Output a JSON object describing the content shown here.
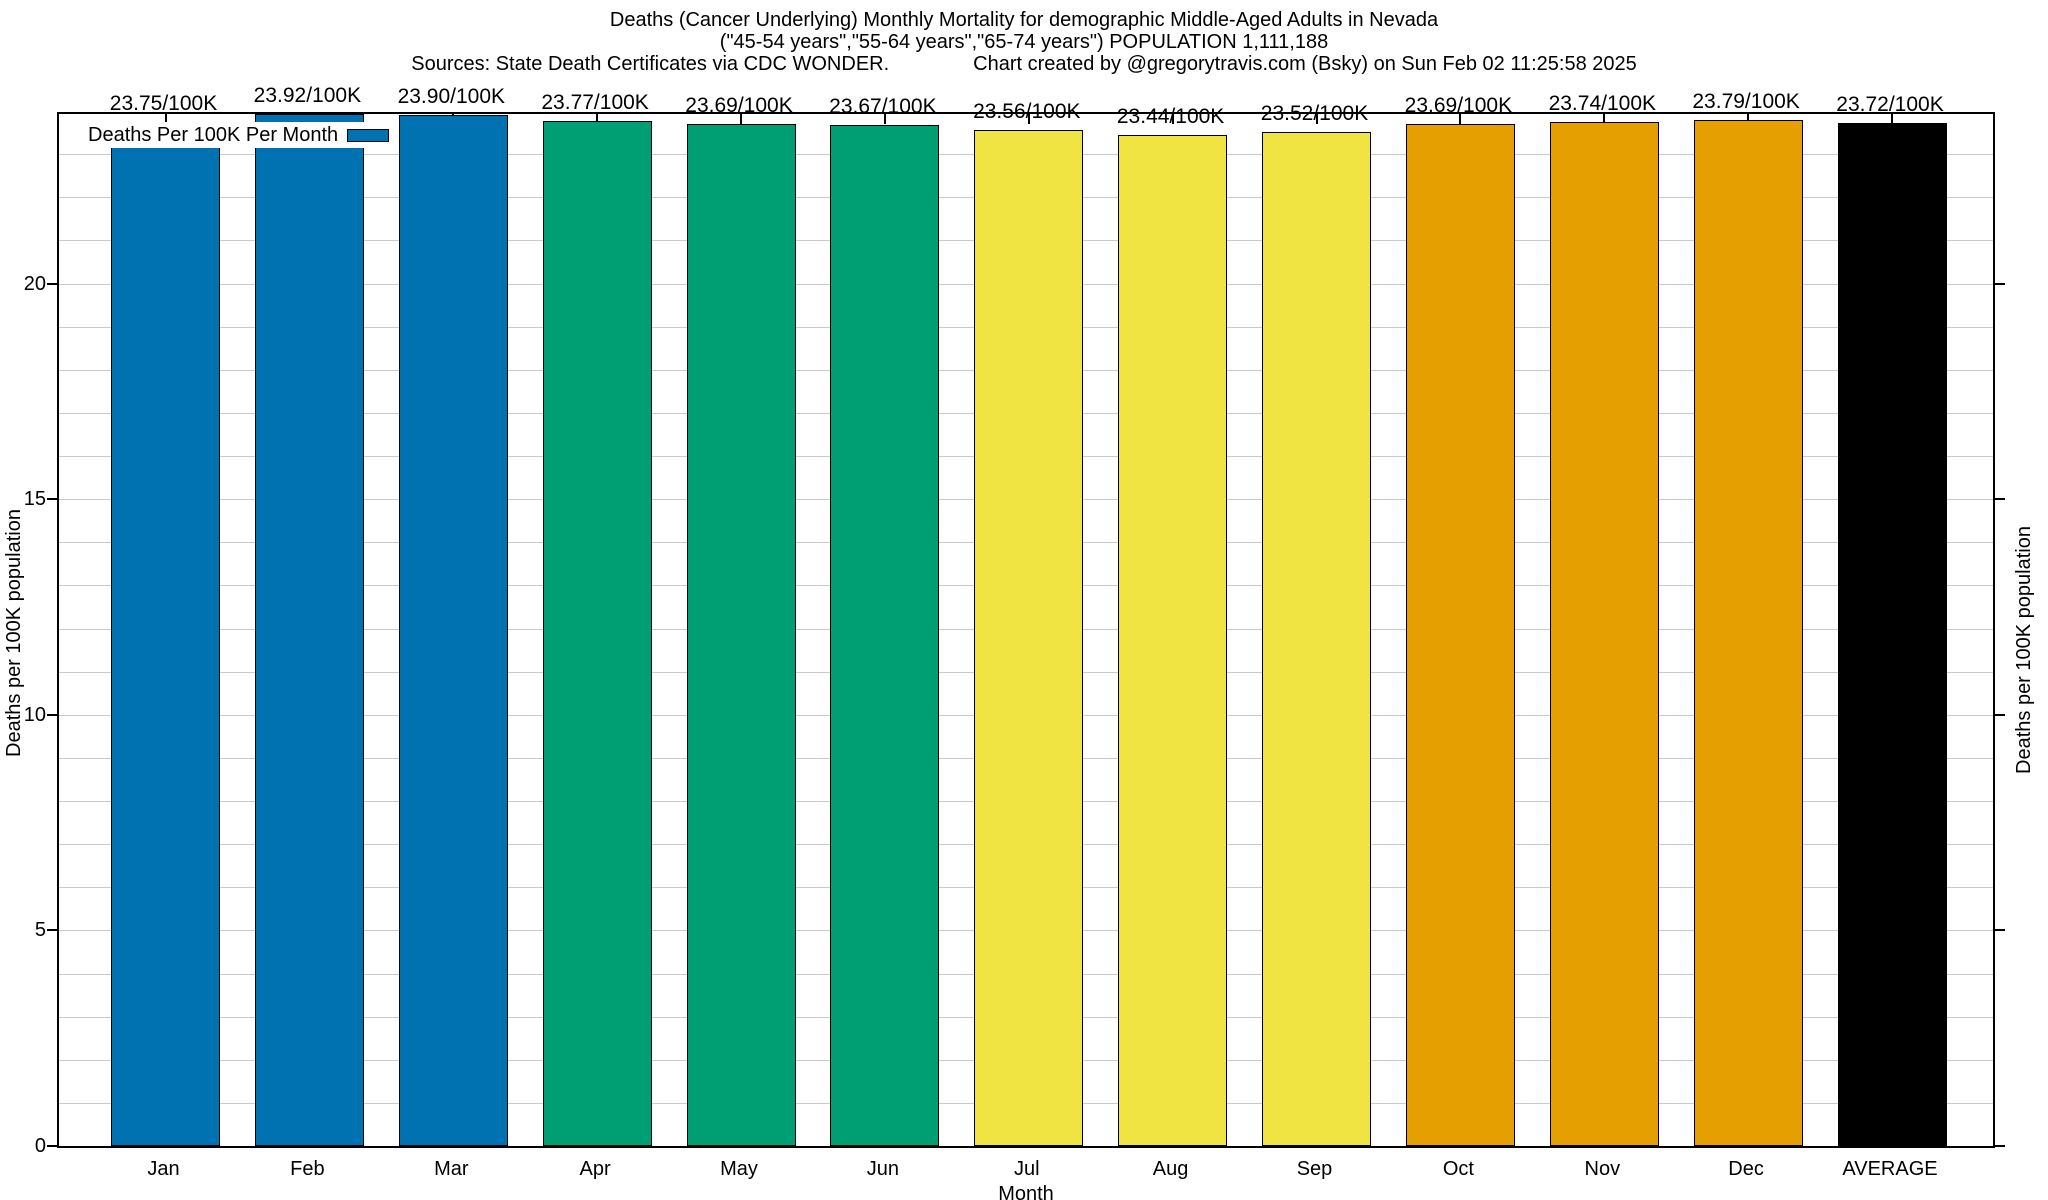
{
  "chart_data": {
    "type": "bar",
    "title_line1": "Deaths (Cancer Underlying) Monthly Mortality for demographic Middle-Aged Adults in Nevada",
    "title_line2": "(\"45-54 years\",\"55-64 years\",\"65-74 years\") POPULATION 1,111,188",
    "source_note": "Sources: State Death Certificates via CDC WONDER.",
    "credit_note": "Chart created by @gregorytravis.com (Bsky) on Sun Feb 02 11:25:58 2025",
    "legend_label": "Deaths Per 100K Per Month",
    "xlabel": "Month",
    "ylabel_left": "Deaths per 100K population",
    "ylabel_right": "Deaths per 100K population",
    "categories": [
      "Jan",
      "Feb",
      "Mar",
      "Apr",
      "May",
      "Jun",
      "Jul",
      "Aug",
      "Sep",
      "Oct",
      "Nov",
      "Dec",
      "AVERAGE"
    ],
    "values": [
      23.75,
      23.92,
      23.9,
      23.77,
      23.69,
      23.67,
      23.56,
      23.44,
      23.52,
      23.69,
      23.74,
      23.79,
      23.72
    ],
    "value_labels": [
      "23.75/100K",
      "23.92/100K",
      "23.90/100K",
      "23.77/100K",
      "23.69/100K",
      "23.67/100K",
      "23.56/100K",
      "23.44/100K",
      "23.52/100K",
      "23.69/100K",
      "23.74/100K",
      "23.79/100K",
      "23.72/100K"
    ],
    "bar_colors": [
      "#0072B2",
      "#0072B2",
      "#0072B2",
      "#009E73",
      "#009E73",
      "#009E73",
      "#F0E442",
      "#F0E442",
      "#F0E442",
      "#E69F00",
      "#E69F00",
      "#E69F00",
      "#000000"
    ],
    "ylim": [
      0,
      23.93
    ],
    "y_major_ticks": [
      0,
      5,
      10,
      15,
      20
    ],
    "y_minor_grid_step": 1,
    "grid": "horizontal minor gridlines every 1 unit",
    "legend_position": "top-left inside plot",
    "colors": {
      "q1_blue": "#0072B2",
      "q2_green": "#009E73",
      "q3_yellow": "#F0E442",
      "q4_orange": "#E69F00",
      "average_black": "#000000",
      "gridline": "#c9c9c9",
      "frame": "#000000",
      "background": "#ffffff"
    }
  }
}
